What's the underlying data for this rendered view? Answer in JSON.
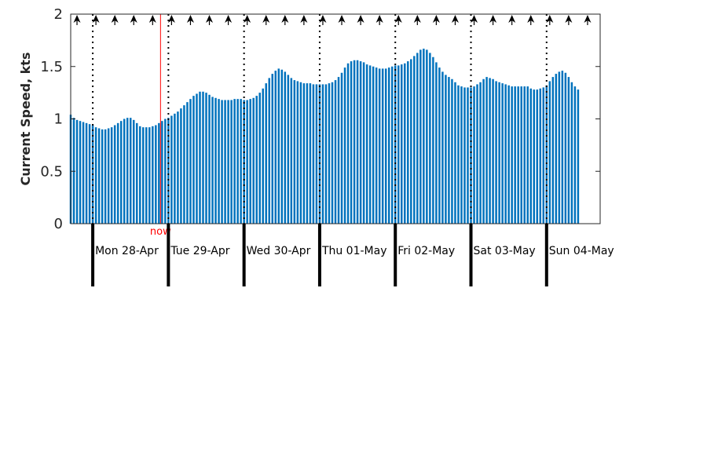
{
  "chart_data": {
    "type": "bar",
    "title": "",
    "xlabel": "",
    "ylabel": "Current Speed, kts",
    "ylim": [
      0,
      2
    ],
    "y_ticks": [
      0,
      0.5,
      1,
      1.5,
      2
    ],
    "y_tick_labels": [
      "0",
      "0.5",
      "1",
      "1.5",
      "2"
    ],
    "x_range_hours": [
      0,
      168
    ],
    "bar_color": "#0072BD",
    "now_color": "#FF0000",
    "now_label": "now",
    "now_hour": 28.5,
    "grid": false,
    "day_labels": [
      "Mon 28-Apr",
      "Tue 29-Apr",
      "Wed 30-Apr",
      "Thu 01-May",
      "Fri 02-May",
      "Sat 03-May",
      "Sun 04-May"
    ],
    "day_boundaries_hours": [
      7,
      31,
      55,
      79,
      103,
      127,
      151
    ],
    "direction_arrow_hours": [
      2,
      8,
      14,
      20,
      26,
      32,
      38,
      44,
      50,
      56,
      62,
      68,
      74,
      80,
      86,
      92,
      98,
      104,
      110,
      116,
      122,
      128,
      134,
      140,
      146,
      152,
      158,
      164
    ],
    "direction_arrow_icon": "north-arrow-icon",
    "series": [
      {
        "hour_step": 1,
        "values": [
          1.04,
          1.01,
          0.99,
          0.98,
          0.97,
          0.96,
          0.95,
          0.94,
          0.92,
          0.91,
          0.9,
          0.9,
          0.91,
          0.92,
          0.94,
          0.96,
          0.98,
          1.0,
          1.01,
          1.01,
          0.99,
          0.96,
          0.93,
          0.92,
          0.92,
          0.92,
          0.93,
          0.94,
          0.96,
          0.98,
          1.0,
          1.01,
          1.03,
          1.05,
          1.07,
          1.1,
          1.13,
          1.16,
          1.19,
          1.22,
          1.24,
          1.26,
          1.26,
          1.25,
          1.23,
          1.21,
          1.2,
          1.19,
          1.18,
          1.18,
          1.18,
          1.18,
          1.19,
          1.19,
          1.19,
          1.18,
          1.18,
          1.19,
          1.2,
          1.22,
          1.25,
          1.29,
          1.34,
          1.39,
          1.43,
          1.46,
          1.48,
          1.47,
          1.45,
          1.42,
          1.39,
          1.37,
          1.36,
          1.35,
          1.34,
          1.34,
          1.34,
          1.33,
          1.33,
          1.33,
          1.33,
          1.33,
          1.34,
          1.35,
          1.37,
          1.4,
          1.44,
          1.49,
          1.53,
          1.55,
          1.56,
          1.56,
          1.55,
          1.54,
          1.52,
          1.51,
          1.5,
          1.49,
          1.48,
          1.48,
          1.48,
          1.49,
          1.5,
          1.51,
          1.51,
          1.52,
          1.53,
          1.55,
          1.57,
          1.6,
          1.63,
          1.66,
          1.67,
          1.66,
          1.63,
          1.59,
          1.54,
          1.49,
          1.45,
          1.42,
          1.4,
          1.38,
          1.35,
          1.32,
          1.31,
          1.3,
          1.3,
          1.3,
          1.31,
          1.33,
          1.35,
          1.38,
          1.4,
          1.39,
          1.38,
          1.36,
          1.35,
          1.34,
          1.33,
          1.32,
          1.31,
          1.31,
          1.31,
          1.31,
          1.31,
          1.31,
          1.29,
          1.28,
          1.28,
          1.29,
          1.3,
          1.32,
          1.36,
          1.4,
          1.43,
          1.45,
          1.46,
          1.44,
          1.4,
          1.35,
          1.31,
          1.28
        ]
      }
    ]
  }
}
